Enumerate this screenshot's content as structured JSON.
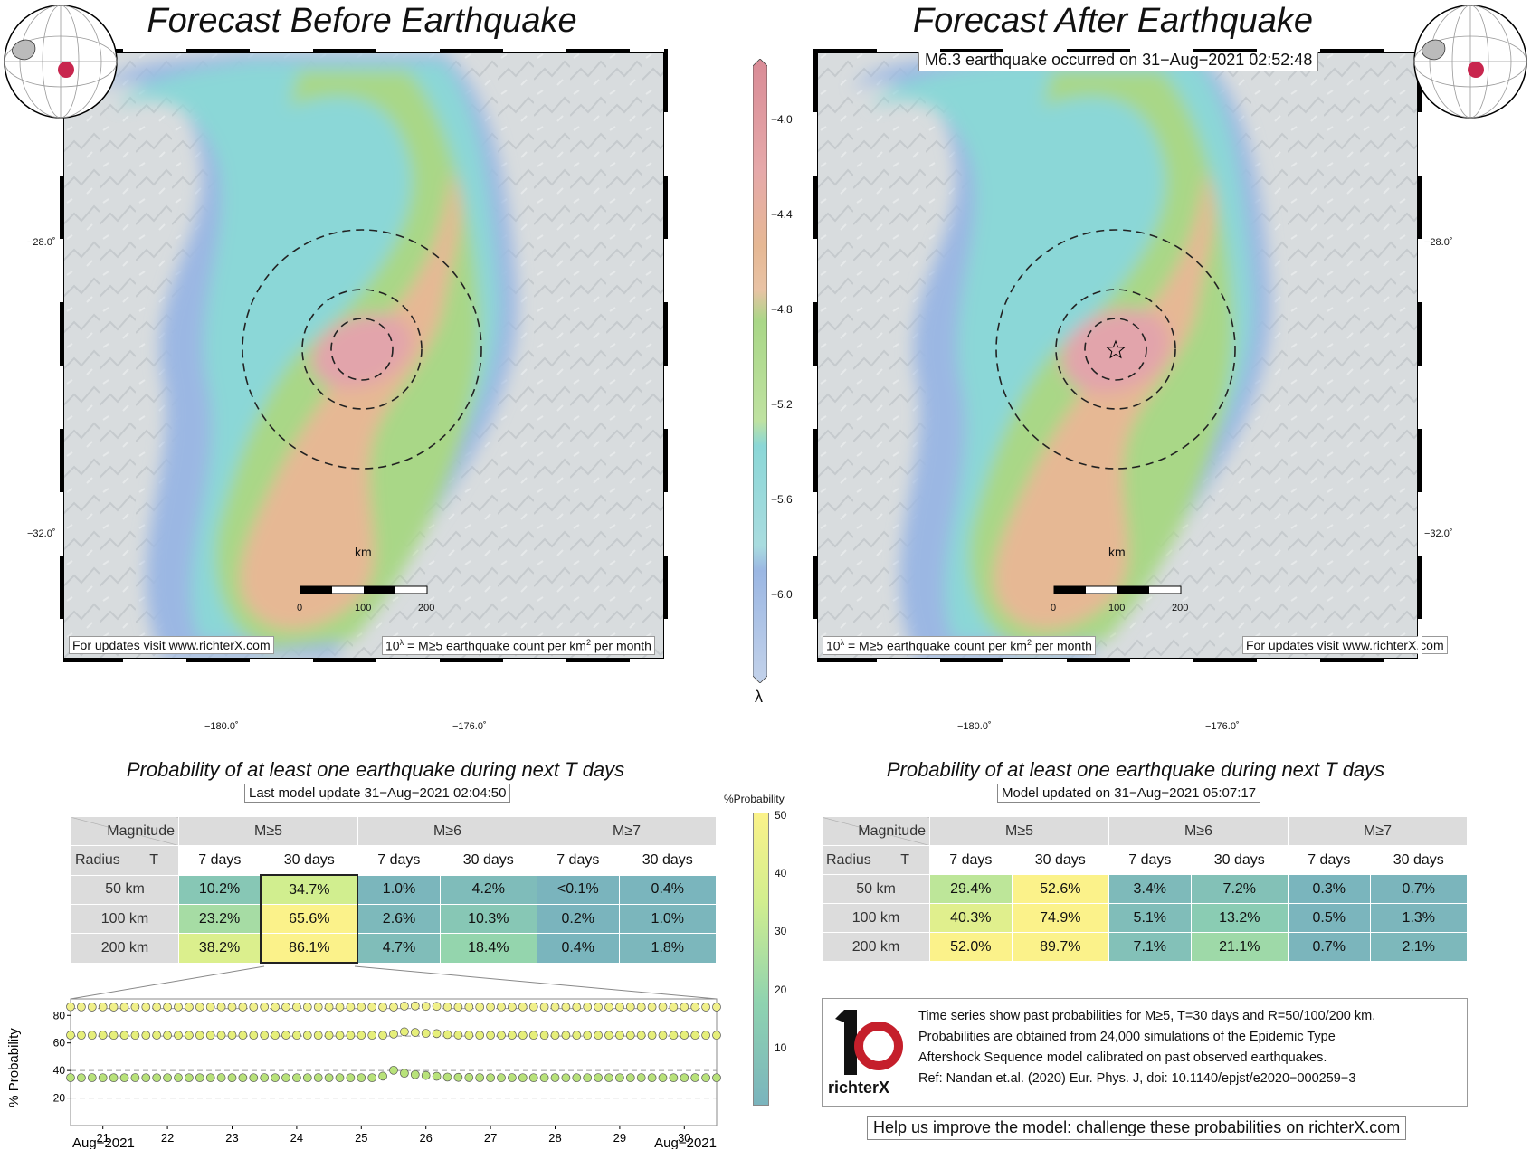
{
  "left_panel": {
    "title": "Forecast Before Earthquake",
    "updates_note": "For updates visit www.richterX.com",
    "units_note_base": "10",
    "units_note_sup": "λ",
    "units_note_rest": " = M≥5 earthquake count per km",
    "units_note_sup2": "2",
    "units_note_end": " per month",
    "scale_label": "km",
    "scale_ticks": [
      "0",
      "100",
      "200"
    ],
    "lat_labels": [
      "−28.0˚",
      "−32.0˚"
    ],
    "lon_labels": [
      "−180.0˚",
      "−176.0˚"
    ]
  },
  "right_panel": {
    "title": "Forecast After Earthquake",
    "event_note": "M6.3 earthquake occurred on 31−Aug−2021 02:52:48",
    "updates_note": "For updates visit www.richterX.com",
    "units_note_base": "10",
    "units_note_sup": "λ",
    "units_note_rest": " = M≥5 earthquake count per km",
    "units_note_sup2": "2",
    "units_note_end": " per month",
    "scale_label": "km",
    "scale_ticks": [
      "0",
      "100",
      "200"
    ],
    "lat_labels": [
      "−28.0˚",
      "−32.0˚"
    ],
    "lon_labels": [
      "−180.0˚",
      "−176.0˚"
    ],
    "epicenter_icon": "star-icon"
  },
  "map_colorbar": {
    "symbol": "λ",
    "ticks": [
      "−4.0",
      "−4.4",
      "−4.8",
      "−5.2",
      "−5.6",
      "−6.0"
    ]
  },
  "left_table": {
    "title": "Probability of at least one earthquake during next T days",
    "update_note": "Last model update 31−Aug−2021 02:04:50",
    "corner_top": "Magnitude",
    "corner_bottom_left": "Radius",
    "corner_bottom_right": "T",
    "magnitudes": [
      "M≥5",
      "M≥6",
      "M≥7"
    ],
    "periods": [
      "7 days",
      "30 days",
      "7 days",
      "30 days",
      "7 days",
      "30 days"
    ],
    "rows": [
      {
        "radius": "50 km",
        "values": [
          "10.2%",
          "34.7%",
          "1.0%",
          "4.2%",
          "<0.1%",
          "0.4%"
        ],
        "num": [
          10.2,
          34.7,
          1.0,
          4.2,
          0.05,
          0.4
        ]
      },
      {
        "radius": "100 km",
        "values": [
          "23.2%",
          "65.6%",
          "2.6%",
          "10.3%",
          "0.2%",
          "1.0%"
        ],
        "num": [
          23.2,
          65.6,
          2.6,
          10.3,
          0.2,
          1.0
        ]
      },
      {
        "radius": "200 km",
        "values": [
          "38.2%",
          "86.1%",
          "4.7%",
          "18.4%",
          "0.4%",
          "1.8%"
        ],
        "num": [
          38.2,
          86.1,
          4.7,
          18.4,
          0.4,
          1.8
        ]
      }
    ]
  },
  "right_table": {
    "title": "Probability of at least one earthquake during next T days",
    "update_note": "Model updated on 31−Aug−2021 05:07:17",
    "corner_top": "Magnitude",
    "corner_bottom_left": "Radius",
    "corner_bottom_right": "T",
    "magnitudes": [
      "M≥5",
      "M≥6",
      "M≥7"
    ],
    "periods": [
      "7 days",
      "30 days",
      "7 days",
      "30 days",
      "7 days",
      "30 days"
    ],
    "rows": [
      {
        "radius": "50 km",
        "values": [
          "29.4%",
          "52.6%",
          "3.4%",
          "7.2%",
          "0.3%",
          "0.7%"
        ],
        "num": [
          29.4,
          52.6,
          3.4,
          7.2,
          0.3,
          0.7
        ]
      },
      {
        "radius": "100 km",
        "values": [
          "40.3%",
          "74.9%",
          "5.1%",
          "13.2%",
          "0.5%",
          "1.3%"
        ],
        "num": [
          40.3,
          74.9,
          5.1,
          13.2,
          0.5,
          1.3
        ]
      },
      {
        "radius": "200 km",
        "values": [
          "52.0%",
          "89.7%",
          "7.1%",
          "21.1%",
          "0.7%",
          "2.1%"
        ],
        "num": [
          52.0,
          89.7,
          7.1,
          21.1,
          0.7,
          2.1
        ]
      }
    ]
  },
  "prob_colorbar": {
    "label": "%Probability",
    "ticks": [
      "50",
      "40",
      "30",
      "20",
      "10"
    ],
    "colors": [
      "#7ab4bd",
      "#8fd3b0",
      "#d2ee8e",
      "#fbf28a"
    ]
  },
  "chart_data": {
    "type": "scatter",
    "ylabel": "% Probability",
    "yticks": [
      20,
      40,
      60,
      80
    ],
    "ylim": [
      0,
      92
    ],
    "x_tick_labels": [
      "21",
      "22",
      "23",
      "24",
      "25",
      "26",
      "27",
      "28",
      "29",
      "30"
    ],
    "x_start_label": "Aug−2021",
    "x_end_label": "Aug−2021",
    "xlim_days": [
      20.5,
      30.5
    ],
    "dashed_reference_lines": [
      20,
      40,
      65,
      85
    ],
    "series": [
      {
        "values_profile": "200 km",
        "values": [
          86.3,
          86.2,
          86.1,
          86.2,
          86.1,
          86.1,
          86.2,
          86.1,
          86.1,
          86.1,
          86.2,
          86.1,
          86.1,
          86.1,
          86.2,
          86.1,
          86.1,
          86.1,
          86.2,
          86.1,
          86.1,
          86.2,
          86.1,
          86.1,
          86.1,
          86.1,
          86.1,
          86.2,
          86.1,
          86.1,
          86.1,
          86.8,
          86.9,
          86.6,
          86.6,
          86.2,
          86.1,
          86.2,
          86.1,
          86.1,
          86.2,
          86.1,
          86.2,
          86.2,
          86.1,
          86.2,
          86.1,
          86.1,
          86.2,
          86.1,
          86.1,
          86.1,
          86.2,
          86.1,
          86.1,
          86.2,
          86.1,
          86.1,
          86.2,
          86.1,
          86.1
        ],
        "color": "#f0f08a"
      },
      {
        "values_profile": "100 km",
        "values": [
          65.7,
          65.6,
          65.6,
          65.7,
          65.6,
          65.6,
          65.6,
          65.6,
          65.7,
          65.6,
          65.6,
          65.6,
          65.6,
          65.6,
          65.6,
          65.7,
          65.6,
          65.6,
          65.6,
          65.6,
          65.7,
          65.6,
          65.6,
          65.6,
          65.6,
          65.6,
          65.6,
          65.6,
          65.6,
          65.6,
          66.5,
          68.1,
          67.6,
          67.0,
          66.8,
          66.1,
          65.8,
          65.7,
          65.6,
          65.6,
          65.6,
          65.7,
          65.6,
          65.6,
          65.6,
          65.6,
          65.6,
          65.6,
          65.6,
          65.6,
          65.6,
          65.6,
          65.6,
          65.6,
          65.6,
          65.6,
          65.6,
          65.7,
          65.6,
          65.6,
          65.6
        ],
        "color": "#e6ef7a"
      },
      {
        "values_profile": "50 km",
        "values": [
          34.8,
          34.7,
          34.8,
          34.7,
          34.7,
          34.7,
          34.8,
          34.7,
          34.7,
          34.7,
          34.8,
          34.7,
          34.7,
          34.7,
          34.8,
          34.7,
          34.7,
          34.7,
          34.8,
          34.7,
          34.7,
          34.7,
          34.7,
          34.8,
          34.7,
          34.7,
          34.7,
          34.7,
          34.7,
          35.9,
          40.2,
          38.0,
          37.0,
          36.4,
          35.8,
          35.2,
          35.0,
          34.9,
          34.8,
          34.7,
          34.7,
          34.8,
          34.7,
          34.7,
          34.7,
          34.8,
          34.7,
          34.7,
          34.7,
          34.8,
          34.7,
          34.7,
          34.7,
          34.8,
          34.7,
          34.7,
          34.7,
          34.7,
          34.8,
          34.7,
          34.7
        ],
        "color": "#b8e27a"
      }
    ]
  },
  "info_box": {
    "logo_text": "richterX",
    "lines": [
      "Time series show past probabilities for M≥5, T=30 days and R=50/100/200 km.",
      "Probabilities are obtained from 24,000 simulations of the Epidemic Type",
      "Aftershock Sequence model calibrated on past observed earthquakes.",
      "Ref: Nandan et.al. (2020) Eur. Phys. J, doi: 10.1140/epjst/e2020−000259−3"
    ]
  },
  "footer_note": "Help us improve the model: challenge these probabilities on richterX.com",
  "colors": {
    "red_zone": "#e2a4ab",
    "orange_zone": "#e6b894",
    "green_zone": "#a9d787",
    "cyan_zone": "#8bd7d7",
    "blue_zone": "#9bb7e3",
    "land_grey": "#d8dcde"
  }
}
